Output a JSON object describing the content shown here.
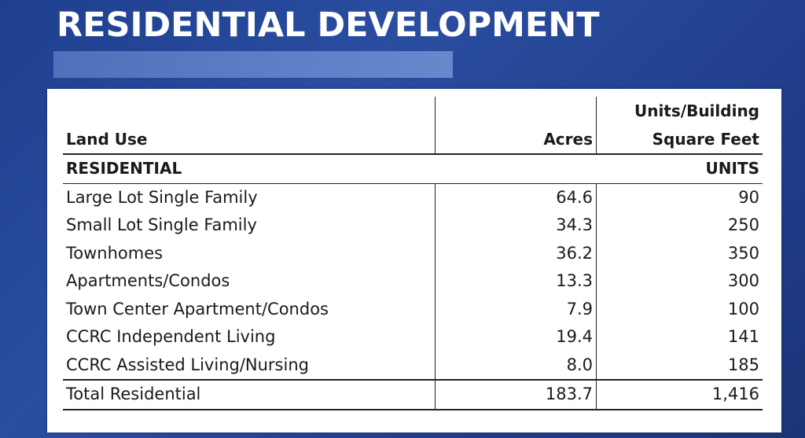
{
  "title": "RESIDENTIAL DEVELOPMENT",
  "table": {
    "headers": {
      "land_use": "Land Use",
      "acres": "Acres",
      "units_line1": "Units/Building",
      "units_line2": "Square Feet"
    },
    "section": {
      "label": "RESIDENTIAL",
      "units_label": "UNITS"
    },
    "rows": [
      {
        "land_use": "Large Lot Single Family",
        "acres": "64.6",
        "units": "90"
      },
      {
        "land_use": "Small Lot Single Family",
        "acres": "34.3",
        "units": "250"
      },
      {
        "land_use": "Townhomes",
        "acres": "36.2",
        "units": "350"
      },
      {
        "land_use": "Apartments/Condos",
        "acres": "13.3",
        "units": "300"
      },
      {
        "land_use": "Town Center Apartment/Condos",
        "acres": "7.9",
        "units": "100"
      },
      {
        "land_use": "CCRC Independent Living",
        "acres": "19.4",
        "units": "141"
      },
      {
        "land_use": "CCRC Assisted Living/Nursing",
        "acres": "8.0",
        "units": "185"
      }
    ],
    "total": {
      "land_use": "Total Residential",
      "acres": "183.7",
      "units": "1,416"
    }
  },
  "colors": {
    "background": "#23408f",
    "accent_bar": "#6080c8",
    "panel": "#ffffff",
    "title": "#ffffff"
  }
}
